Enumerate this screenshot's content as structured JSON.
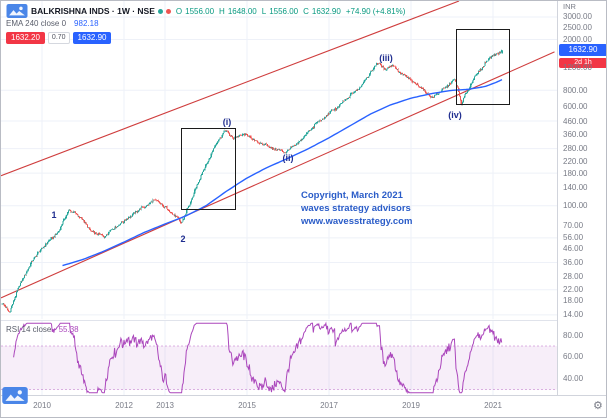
{
  "header": {
    "title": "BALKRISHNA INDS · 1W · NSE",
    "ohlc": {
      "o_label": "O",
      "o": "1556.00",
      "h_label": "H",
      "h": "1648.00",
      "l_label": "L",
      "l": "1556.00",
      "c_label": "C",
      "c": "1632.90",
      "change": "+74.90 (+4.81%)"
    },
    "indicator": {
      "label": "EMA 240 close 0",
      "value": "982.18"
    },
    "order_panel": {
      "sell": "1632.20",
      "spread": "0.70",
      "buy": "1632.90"
    }
  },
  "price_scale": {
    "currency": "INR",
    "badge_price": "1632.90",
    "countdown": "2d 1h"
  },
  "rsi_pane": {
    "legend_label": "RSI 14 close",
    "value": "55.38",
    "ticks": [
      {
        "v": 80,
        "label": "80.00"
      },
      {
        "v": 60,
        "label": "60.00"
      },
      {
        "v": 40,
        "label": "40.00"
      }
    ],
    "overbought": 70,
    "oversold": 30
  },
  "time_axis": {
    "labels": [
      {
        "text": "2010",
        "t": 2010
      },
      {
        "text": "2012",
        "t": 2012
      },
      {
        "text": "2013",
        "t": 2013
      },
      {
        "text": "2015",
        "t": 2015
      },
      {
        "text": "2017",
        "t": 2017
      },
      {
        "text": "2019",
        "t": 2019
      },
      {
        "text": "2021",
        "t": 2021
      }
    ]
  },
  "annotations": {
    "copyright": [
      "Copyright, March 2021",
      "waves strategy advisors",
      "www.wavesstrategy.com"
    ],
    "wave_labels": [
      {
        "text": "1",
        "t": 2010.3,
        "price": 84
      },
      {
        "text": "2",
        "t": 2013.45,
        "price": 55
      },
      {
        "text": "(i)",
        "t": 2014.5,
        "price": 452
      },
      {
        "text": "(ii)",
        "t": 2016.0,
        "price": 238
      },
      {
        "text": "(iii)",
        "t": 2018.4,
        "price": 1430
      },
      {
        "text": "(iv)",
        "t": 2020.07,
        "price": 515
      }
    ],
    "boxes": [
      {
        "t1": 2013.39,
        "t2": 2014.68,
        "p1": 96,
        "p2": 406
      },
      {
        "t1": 2020.1,
        "t2": 2021.38,
        "p1": 630,
        "p2": 2400
      }
    ],
    "channel_lines": [
      {
        "from": [
          2009.0,
          172
        ],
        "to": [
          2020.17,
          4000
        ]
      },
      {
        "from": [
          2009.0,
          19
        ],
        "to": [
          2022.5,
          1600
        ]
      }
    ]
  },
  "colors": {
    "up": "#26a69a",
    "down": "#ef5350",
    "ema": "#2962ff",
    "channel": "#cf3d3d",
    "rsi": "#ab47bc",
    "grid": "#eef1f8",
    "axis_text": "#787b86",
    "sell_red": "#f23645",
    "buy_blue": "#2962ff"
  },
  "chart_data": {
    "type": "candlestick",
    "title": "BALKRISHNA INDS 1W NSE",
    "y_scale": "log",
    "x_domain": [
      2009.0,
      2022.56
    ],
    "y_domain": [
      13,
      4000
    ],
    "price_ticks": [
      3000,
      2500,
      2000,
      1200,
      800,
      600,
      460,
      360,
      280,
      220,
      180,
      140,
      100,
      70,
      56,
      46,
      36,
      28,
      22,
      18,
      14
    ],
    "last_bar": {
      "open": 1556.0,
      "high": 1648.0,
      "low": 1556.0,
      "close": 1632.9,
      "change": 74.9,
      "change_pct": 4.81
    },
    "close_anchors": [
      [
        2009.02,
        17
      ],
      [
        2009.2,
        14.5
      ],
      [
        2009.45,
        24
      ],
      [
        2009.75,
        38
      ],
      [
        2010.1,
        52
      ],
      [
        2010.4,
        62
      ],
      [
        2010.65,
        95
      ],
      [
        2010.9,
        82
      ],
      [
        2011.2,
        64
      ],
      [
        2011.5,
        58
      ],
      [
        2011.8,
        70
      ],
      [
        2012.1,
        80
      ],
      [
        2012.45,
        96
      ],
      [
        2012.7,
        112
      ],
      [
        2012.95,
        100
      ],
      [
        2013.15,
        88
      ],
      [
        2013.38,
        74
      ],
      [
        2013.6,
        105
      ],
      [
        2013.85,
        165
      ],
      [
        2014.05,
        230
      ],
      [
        2014.25,
        310
      ],
      [
        2014.45,
        392
      ],
      [
        2014.65,
        330
      ],
      [
        2014.9,
        368
      ],
      [
        2015.15,
        330
      ],
      [
        2015.45,
        298
      ],
      [
        2015.7,
        272
      ],
      [
        2015.95,
        260
      ],
      [
        2016.2,
        308
      ],
      [
        2016.5,
        388
      ],
      [
        2016.8,
        470
      ],
      [
        2017.1,
        556
      ],
      [
        2017.4,
        680
      ],
      [
        2017.7,
        830
      ],
      [
        2017.95,
        1060
      ],
      [
        2018.15,
        1320
      ],
      [
        2018.35,
        1150
      ],
      [
        2018.55,
        1240
      ],
      [
        2018.8,
        1040
      ],
      [
        2019.05,
        930
      ],
      [
        2019.3,
        790
      ],
      [
        2019.5,
        715
      ],
      [
        2019.7,
        800
      ],
      [
        2019.9,
        890
      ],
      [
        2020.05,
        960
      ],
      [
        2020.14,
        820
      ],
      [
        2020.22,
        625
      ],
      [
        2020.35,
        780
      ],
      [
        2020.5,
        950
      ],
      [
        2020.65,
        1110
      ],
      [
        2020.8,
        1300
      ],
      [
        2020.95,
        1460
      ],
      [
        2021.08,
        1560
      ],
      [
        2021.22,
        1632.9
      ]
    ],
    "series": [
      {
        "name": "EMA 240",
        "type": "line",
        "points": [
          [
            2010.5,
            34
          ],
          [
            2011,
            38
          ],
          [
            2011.5,
            44
          ],
          [
            2012,
            52
          ],
          [
            2012.5,
            62
          ],
          [
            2013,
            72
          ],
          [
            2013.5,
            83
          ],
          [
            2014,
            100
          ],
          [
            2014.5,
            130
          ],
          [
            2015,
            165
          ],
          [
            2015.5,
            200
          ],
          [
            2016,
            235
          ],
          [
            2016.5,
            280
          ],
          [
            2017,
            340
          ],
          [
            2017.5,
            420
          ],
          [
            2018,
            520
          ],
          [
            2018.5,
            615
          ],
          [
            2019,
            695
          ],
          [
            2019.5,
            755
          ],
          [
            2020,
            800
          ],
          [
            2020.4,
            815
          ],
          [
            2020.8,
            855
          ],
          [
            2021.1,
            930
          ],
          [
            2021.25,
            982
          ]
        ]
      }
    ],
    "sub_chart": {
      "type": "line",
      "name": "RSI 14",
      "value": 55.38,
      "range": [
        0,
        100
      ],
      "bands": [
        70,
        30
      ]
    }
  }
}
